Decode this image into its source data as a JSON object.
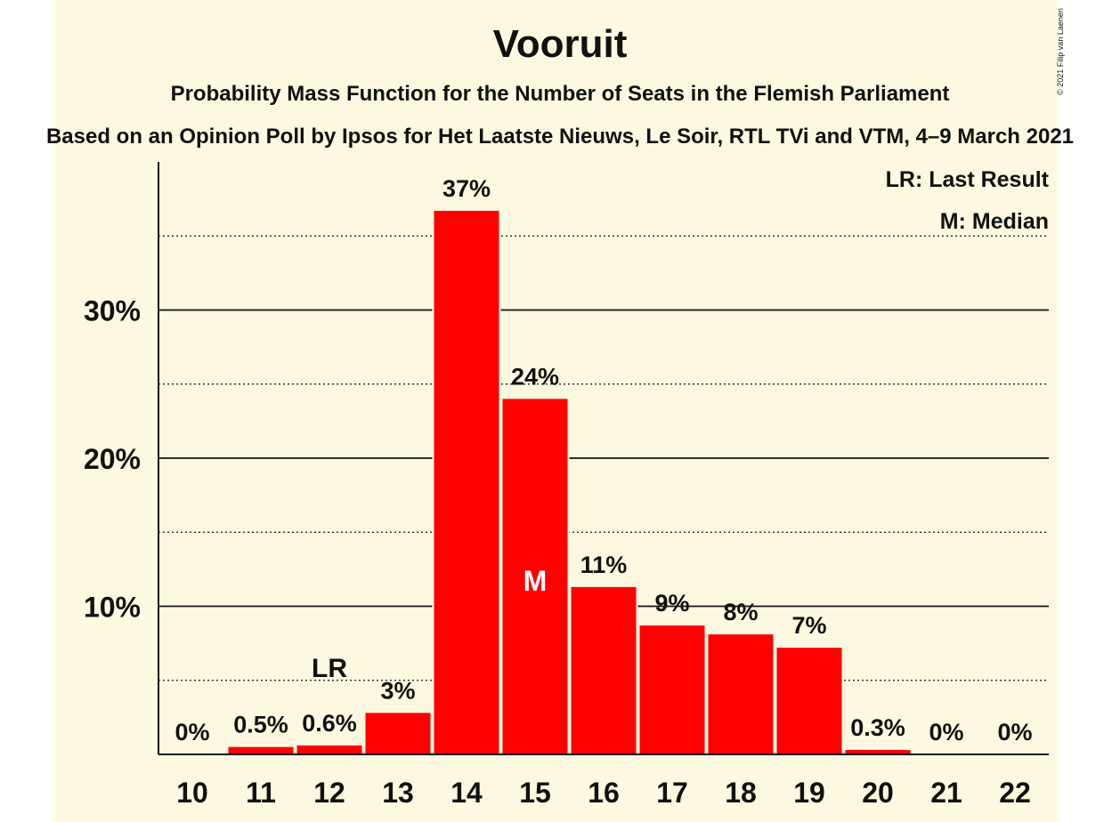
{
  "chart_data": {
    "type": "bar",
    "title": "Vooruit",
    "subtitle": "Probability Mass Function for the Number of Seats in the Flemish Parliament",
    "subtitle2": "Based on an Opinion Poll by Ipsos for Het Laatste Nieuws, Le Soir, RTL TVi and VTM, 4–9 March 2021",
    "categories": [
      "10",
      "11",
      "12",
      "13",
      "14",
      "15",
      "16",
      "17",
      "18",
      "19",
      "20",
      "21",
      "22"
    ],
    "values": [
      0,
      0.5,
      0.6,
      2.8,
      36.7,
      24.0,
      11.3,
      8.7,
      8.1,
      7.2,
      0.3,
      0,
      0
    ],
    "data_labels": [
      "0%",
      "0.5%",
      "0.6%",
      "3%",
      "37%",
      "24%",
      "11%",
      "9%",
      "8%",
      "7%",
      "0.3%",
      "0%",
      "0%"
    ],
    "ylim": [
      0,
      40
    ],
    "yticks": [
      10,
      20,
      30
    ],
    "ytick_labels": [
      "10%",
      "20%",
      "30%"
    ],
    "minor_gridlines": [
      5,
      15,
      25,
      35
    ],
    "last_result_category": "12",
    "median_category": "15",
    "last_result_marker": "LR",
    "median_marker": "M",
    "legend": [
      "LR: Last Result",
      "M: Median"
    ],
    "legend_position": "top-right",
    "copyright": "© 2021 Filip van Laenen",
    "colors": {
      "bar": "#ff0000",
      "background": "#fdf9e0",
      "text": "#111111"
    }
  }
}
